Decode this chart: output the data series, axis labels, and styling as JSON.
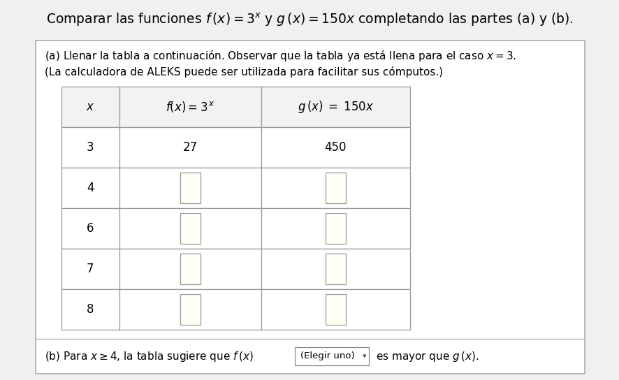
{
  "title": "Comparar las funciones $f\\,(x)=3^{x}$ y $g\\,(x)=150x$ completando las partes (a) y (b).",
  "background_color": "#f0f0f0",
  "box_bg_color": "#f5f5f5",
  "box_border_color": "#aaaaaa",
  "text_color": "#000000",
  "part_a_line1": "(a) Llenar la tabla a continuación. Observar que la tabla ya está llena para el caso $x=3$.",
  "part_a_line2": "(La calculadora de ALEKS puede ser utilizada para facilitar sus cómputos.)",
  "col_headers": [
    "$x$",
    "$f(x)=3^{x}$",
    "$g\\,(x)\\;=\\;150x$"
  ],
  "rows": [
    {
      "x": "3",
      "fx": "27",
      "gx": "450"
    },
    {
      "x": "4",
      "fx": null,
      "gx": null
    },
    {
      "x": "6",
      "fx": null,
      "gx": null
    },
    {
      "x": "7",
      "fx": null,
      "gx": null
    },
    {
      "x": "8",
      "fx": null,
      "gx": null
    }
  ],
  "table_border_color": "#999999",
  "input_box_color": "#fffff5",
  "input_box_border": "#999999",
  "font_size_title": 13.5,
  "font_size_body": 11,
  "font_size_table_header": 12,
  "font_size_table_data": 12
}
